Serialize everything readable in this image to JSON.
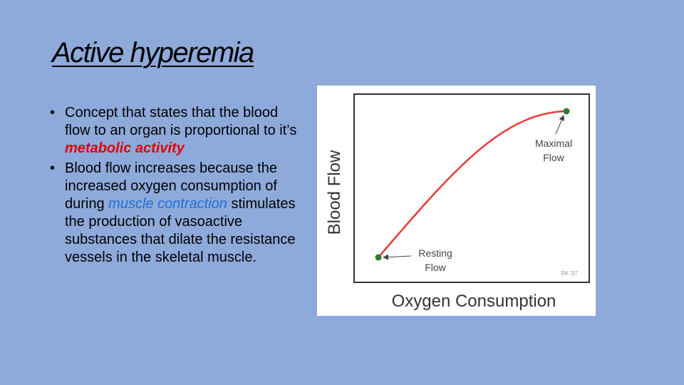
{
  "slide": {
    "title": "Active hyperemia",
    "bullets": [
      {
        "pre": "Concept that states that the blood flow to an organ is proportional to it’s ",
        "highlight": "metabolic activity",
        "highlight_color": "#e00000",
        "post": ""
      },
      {
        "pre": " Blood flow increases because the increased oxygen consumption of during ",
        "highlight": "muscle contraction",
        "highlight_color": "#1f6fd6",
        "post": " stimulates the production of vasoactive substances that dilate the resistance vessels in the skeletal muscle."
      }
    ]
  },
  "figure": {
    "ylabel": "Blood Flow",
    "xlabel": "Oxygen Consumption",
    "start_label_line1": "Resting",
    "start_label_line2": "Flow",
    "end_label_line1": "Maximal",
    "end_label_line2": "Flow",
    "credit": "RK '07",
    "curve_color": "#e83a3a",
    "point_color": "#2e7d32"
  },
  "colors": {
    "background": "#8eaadb"
  }
}
